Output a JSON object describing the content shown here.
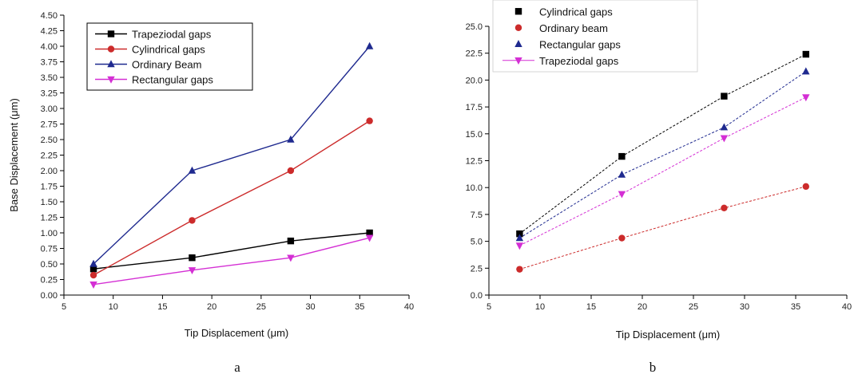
{
  "chart_data": [
    {
      "type": "line",
      "panel_label": "a",
      "xlabel": "Tip Displacement (μm)",
      "ylabel": "Base Displacement (μm)",
      "xlim": [
        5,
        40
      ],
      "ylim": [
        0,
        4.5
      ],
      "xticks": [
        "5",
        "10",
        "15",
        "20",
        "25",
        "30",
        "35",
        "40"
      ],
      "yticks": [
        "0.00",
        "0.25",
        "0.50",
        "0.75",
        "1.00",
        "1.25",
        "1.50",
        "1.75",
        "2.00",
        "2.25",
        "2.50",
        "2.75",
        "3.00",
        "3.25",
        "3.50",
        "3.75",
        "4.00",
        "4.25",
        "4.50"
      ],
      "grid": false,
      "legend_position": "top-left",
      "x": [
        8,
        18,
        28,
        36
      ],
      "series": [
        {
          "name": "Trapeziodal gaps",
          "values": [
            0.42,
            0.6,
            0.87,
            1.0
          ],
          "color": "#000000",
          "marker": "square",
          "dashed": false
        },
        {
          "name": "Cylindrical gaps",
          "values": [
            0.32,
            1.2,
            2.0,
            2.8
          ],
          "color": "#cc2b2b",
          "marker": "circle",
          "dashed": false
        },
        {
          "name": "Ordinary Beam",
          "values": [
            0.5,
            2.0,
            2.5,
            4.0
          ],
          "color": "#1f2a8f",
          "marker": "triangle-up",
          "dashed": false
        },
        {
          "name": "Rectangular gaps",
          "values": [
            0.17,
            0.4,
            0.6,
            0.92
          ],
          "color": "#d42fd4",
          "marker": "triangle-down",
          "dashed": false
        }
      ]
    },
    {
      "type": "line",
      "panel_label": "b",
      "xlabel": "Tip Displacement (μm)",
      "ylabel": "",
      "xlim": [
        5,
        40
      ],
      "ylim": [
        0,
        25
      ],
      "xticks": [
        "5",
        "10",
        "15",
        "20",
        "25",
        "30",
        "35",
        "40"
      ],
      "yticks": [
        "0.0",
        "2.5",
        "5.0",
        "7.5",
        "10.0",
        "12.5",
        "15.0",
        "17.5",
        "20.0",
        "22.5",
        "25.0"
      ],
      "grid": false,
      "legend_position": "top-left",
      "x": [
        8,
        18,
        28,
        36
      ],
      "series": [
        {
          "name": "Cylindrical gaps",
          "values": [
            5.7,
            12.9,
            18.5,
            22.4
          ],
          "color": "#000000",
          "marker": "square",
          "dashed": true
        },
        {
          "name": "Ordinary beam",
          "values": [
            2.4,
            5.3,
            8.1,
            10.1
          ],
          "color": "#cc2b2b",
          "marker": "circle",
          "dashed": true
        },
        {
          "name": "Rectangular gaps",
          "values": [
            5.3,
            11.2,
            15.6,
            20.8
          ],
          "color": "#1f2a8f",
          "marker": "triangle-up",
          "dashed": true
        },
        {
          "name": "Trapeziodal gaps",
          "values": [
            4.6,
            9.4,
            14.6,
            18.4
          ],
          "color": "#d42fd4",
          "marker": "triangle-down",
          "dashed": true
        }
      ]
    }
  ]
}
